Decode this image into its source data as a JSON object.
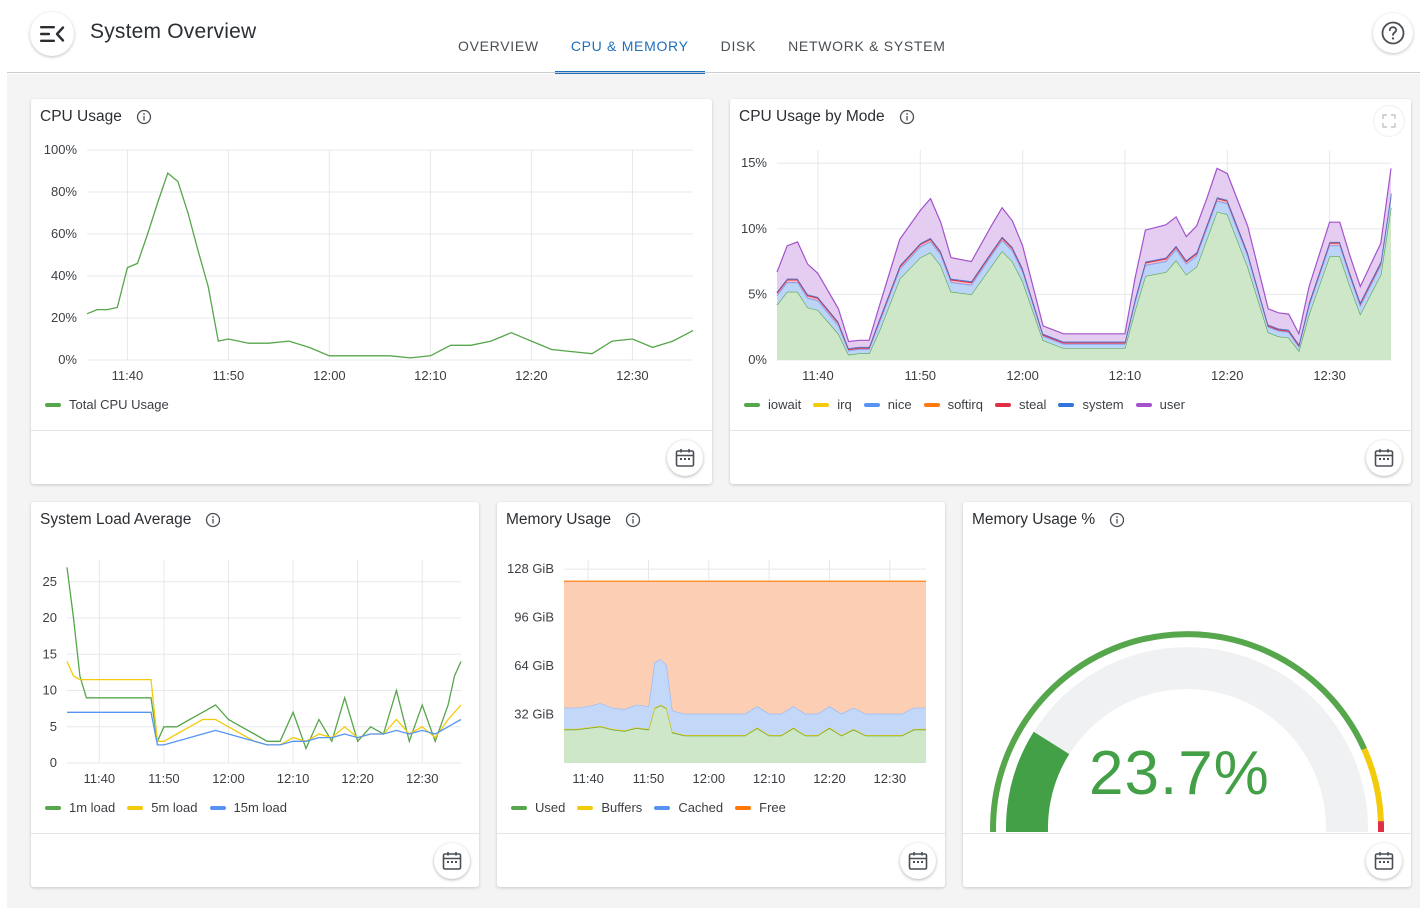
{
  "header": {
    "title": "System Overview",
    "tabs": [
      {
        "label": "OVERVIEW",
        "active": false
      },
      {
        "label": "CPU & MEMORY",
        "active": true
      },
      {
        "label": "DISK",
        "active": false
      },
      {
        "label": "NETWORK & SYSTEM",
        "active": false
      }
    ],
    "icons": {
      "menu": "menu-collapse-icon",
      "help": "help-circle-icon"
    },
    "accent_color": "#1f6fbf"
  },
  "panels": {
    "cpu_usage": {
      "title": "CPU Usage",
      "legend": [
        "Total CPU Usage"
      ]
    },
    "cpu_by_mode": {
      "title": "CPU Usage by Mode",
      "legend": [
        "iowait",
        "irq",
        "nice",
        "softirq",
        "steal",
        "system",
        "user"
      ]
    },
    "load_avg": {
      "title": "System Load Average",
      "legend": [
        "1m load",
        "5m load",
        "15m load"
      ]
    },
    "memory": {
      "title": "Memory Usage",
      "legend": [
        "Used",
        "Buffers",
        "Cached",
        "Free"
      ]
    },
    "memory_pct": {
      "title": "Memory Usage %",
      "value": "23.7%"
    }
  },
  "chart_data": [
    {
      "type": "line",
      "title": "CPU Usage",
      "x": [
        "11:36",
        "11:37",
        "11:38",
        "11:39",
        "11:40",
        "11:41",
        "11:42",
        "11:43",
        "11:44",
        "11:45",
        "11:46",
        "11:47",
        "11:48",
        "11:49",
        "11:50",
        "11:52",
        "11:54",
        "11:56",
        "11:58",
        "12:00",
        "12:02",
        "12:04",
        "12:06",
        "12:08",
        "12:10",
        "12:12",
        "12:14",
        "12:16",
        "12:18",
        "12:20",
        "12:22",
        "12:24",
        "12:26",
        "12:28",
        "12:30",
        "12:32",
        "12:34",
        "12:36"
      ],
      "xticks": [
        "11:40",
        "11:50",
        "12:00",
        "12:10",
        "12:20",
        "12:30"
      ],
      "yticks": [
        "0%",
        "20%",
        "40%",
        "60%",
        "80%",
        "100%"
      ],
      "ylim": [
        0,
        100
      ],
      "series": [
        {
          "name": "Total CPU Usage",
          "color": "#56a64b",
          "values": [
            22,
            24,
            24,
            25,
            44,
            46,
            60,
            75,
            89,
            85,
            70,
            52,
            35,
            9,
            10,
            8,
            8,
            9,
            6,
            2,
            2,
            2,
            2,
            1,
            2,
            7,
            7,
            9,
            13,
            9,
            5,
            4,
            3,
            9,
            10,
            6,
            9,
            14
          ]
        }
      ]
    },
    {
      "type": "area",
      "title": "CPU Usage by Mode",
      "xticks": [
        "11:40",
        "11:50",
        "12:00",
        "12:10",
        "12:20",
        "12:30"
      ],
      "yticks": [
        "0%",
        "5%",
        "10%",
        "15%"
      ],
      "ylim": [
        0,
        16
      ],
      "x": [
        "11:36",
        "11:37",
        "11:38",
        "11:39",
        "11:40",
        "11:42",
        "11:43",
        "11:44",
        "11:45",
        "11:46",
        "11:48",
        "11:50",
        "11:51",
        "11:52",
        "11:53",
        "11:55",
        "11:57",
        "11:58",
        "11:59",
        "12:00",
        "12:02",
        "12:04",
        "12:06",
        "12:08",
        "12:10",
        "12:11",
        "12:12",
        "12:14",
        "12:15",
        "12:16",
        "12:17",
        "12:18",
        "12:19",
        "12:20",
        "12:22",
        "12:24",
        "12:25",
        "12:26",
        "12:27",
        "12:28",
        "12:30",
        "12:31",
        "12:32",
        "12:33",
        "12:35",
        "12:36"
      ],
      "series": [
        {
          "name": "iowait",
          "color": "#56a64b",
          "values": [
            4.2,
            5.2,
            5.2,
            4.0,
            3.8,
            2.0,
            0.4,
            0.5,
            0.5,
            2.2,
            6.2,
            7.8,
            8.2,
            7.2,
            5.2,
            5.0,
            7.2,
            8.3,
            7.5,
            6.0,
            1.5,
            0.9,
            0.9,
            0.9,
            0.9,
            3.8,
            6.4,
            6.7,
            7.6,
            6.5,
            7.1,
            9.2,
            11.3,
            11.1,
            7.1,
            2.1,
            1.8,
            1.7,
            0.7,
            3.5,
            7.9,
            7.9,
            5.6,
            3.5,
            6.5,
            11.6
          ]
        },
        {
          "name": "irq",
          "color": "#f2cc0c",
          "values": [
            0,
            0,
            0,
            0,
            0,
            0,
            0,
            0,
            0,
            0,
            0,
            0,
            0,
            0,
            0,
            0,
            0,
            0,
            0,
            0,
            0,
            0,
            0,
            0,
            0,
            0,
            0,
            0,
            0,
            0,
            0,
            0,
            0,
            0,
            0,
            0,
            0,
            0,
            0,
            0,
            0,
            0,
            0,
            0,
            0,
            0
          ]
        },
        {
          "name": "nice",
          "color": "#8ab8ff",
          "values": [
            0.7,
            0.7,
            0.7,
            0.7,
            0.7,
            0.6,
            0.3,
            0.3,
            0.3,
            0.6,
            0.7,
            0.8,
            0.8,
            0.8,
            0.7,
            0.7,
            0.8,
            0.8,
            0.8,
            0.7,
            0.3,
            0.3,
            0.3,
            0.3,
            0.3,
            0.6,
            0.8,
            0.8,
            0.8,
            0.8,
            0.8,
            0.8,
            0.8,
            0.8,
            0.8,
            0.4,
            0.4,
            0.4,
            0.3,
            0.6,
            0.8,
            0.8,
            0.7,
            0.6,
            0.7,
            0.8
          ]
        },
        {
          "name": "softirq",
          "color": "#ff780a",
          "values": [
            0,
            0,
            0,
            0,
            0,
            0,
            0,
            0,
            0,
            0,
            0,
            0,
            0,
            0,
            0,
            0,
            0,
            0,
            0,
            0,
            0,
            0,
            0,
            0,
            0,
            0,
            0,
            0,
            0,
            0,
            0,
            0,
            0,
            0,
            0,
            0,
            0,
            0,
            0,
            0,
            0,
            0,
            0,
            0,
            0,
            0
          ]
        },
        {
          "name": "steal",
          "color": "#e02f44",
          "values": [
            0.2,
            0.2,
            0.2,
            0.2,
            0.2,
            0.2,
            0.1,
            0.1,
            0.1,
            0.2,
            0.2,
            0.2,
            0.2,
            0.2,
            0.2,
            0.2,
            0.2,
            0.2,
            0.2,
            0.2,
            0.1,
            0.1,
            0.1,
            0.1,
            0.1,
            0.2,
            0.2,
            0.2,
            0.2,
            0.2,
            0.2,
            0.2,
            0.2,
            0.2,
            0.2,
            0.1,
            0.1,
            0.1,
            0.1,
            0.2,
            0.2,
            0.2,
            0.2,
            0.2,
            0.2,
            0.2
          ]
        },
        {
          "name": "system",
          "color": "#3274d9",
          "values": [
            0.1,
            0.1,
            0.1,
            0.1,
            0.1,
            0.1,
            0.1,
            0.1,
            0.1,
            0.1,
            0.1,
            0.1,
            0.1,
            0.1,
            0.1,
            0.1,
            0.1,
            0.1,
            0.1,
            0.1,
            0.1,
            0.1,
            0.1,
            0.1,
            0.1,
            0.1,
            0.1,
            0.1,
            0.1,
            0.1,
            0.1,
            0.1,
            0.1,
            0.1,
            0.1,
            0.1,
            0.1,
            0.1,
            0.1,
            0.1,
            0.1,
            0.1,
            0.1,
            0.1,
            0.1,
            0.1
          ]
        },
        {
          "name": "user",
          "color": "#a352cc",
          "values": [
            1.5,
            2.5,
            2.8,
            2.3,
            1.8,
            1.0,
            0.5,
            0.5,
            0.5,
            1.0,
            2.0,
            2.5,
            3.0,
            2.2,
            1.6,
            1.5,
            2.0,
            2.2,
            2.0,
            1.7,
            0.6,
            0.6,
            0.6,
            0.6,
            0.6,
            1.6,
            2.4,
            2.5,
            2.2,
            1.8,
            2.0,
            2.0,
            2.2,
            2.0,
            2.0,
            1.2,
            1.2,
            1.2,
            0.8,
            1.2,
            1.5,
            1.5,
            1.3,
            1.2,
            1.4,
            1.9
          ]
        }
      ]
    },
    {
      "type": "line",
      "title": "System Load Average",
      "xticks": [
        "11:40",
        "11:50",
        "12:00",
        "12:10",
        "12:20",
        "12:30"
      ],
      "yticks": [
        "0",
        "5",
        "10",
        "15",
        "20",
        "25"
      ],
      "ylim": [
        0,
        28
      ],
      "x": [
        "11:35",
        "11:36",
        "11:37",
        "11:38",
        "11:39",
        "11:40",
        "11:41",
        "11:42",
        "11:43",
        "11:44",
        "11:45",
        "11:46",
        "11:47",
        "11:48",
        "11:49",
        "11:50",
        "11:52",
        "11:54",
        "11:56",
        "11:58",
        "12:00",
        "12:02",
        "12:04",
        "12:06",
        "12:08",
        "12:10",
        "12:12",
        "12:14",
        "12:16",
        "12:18",
        "12:20",
        "12:22",
        "12:24",
        "12:26",
        "12:28",
        "12:30",
        "12:32",
        "12:34",
        "12:35",
        "12:36"
      ],
      "series": [
        {
          "name": "1m load",
          "color": "#56a64b",
          "values": [
            27,
            20,
            12,
            9,
            9,
            9,
            9,
            9,
            9,
            9,
            9,
            9,
            9,
            9,
            3,
            5,
            5,
            6,
            7,
            8,
            6,
            5,
            4,
            3,
            3,
            7,
            2,
            6,
            3,
            9,
            3,
            5,
            4,
            10,
            3,
            8,
            3,
            8,
            12,
            14
          ]
        },
        {
          "name": "5m load",
          "color": "#f2cc0c",
          "values": [
            14,
            12,
            11.5,
            11.5,
            11.5,
            11.5,
            11.5,
            11.5,
            11.5,
            11.5,
            11.5,
            11.5,
            11.5,
            11.5,
            3,
            3,
            4,
            5,
            6,
            6,
            5,
            4,
            3,
            2.5,
            2.5,
            3.5,
            3,
            4,
            3.5,
            5,
            3.5,
            4,
            4,
            6,
            4,
            5,
            3.5,
            6,
            7,
            8
          ]
        },
        {
          "name": "15m load",
          "color": "#5794f2",
          "values": [
            7,
            7,
            7,
            7,
            7,
            7,
            7,
            7,
            7,
            7,
            7,
            7,
            7,
            7,
            2.5,
            2.5,
            3,
            3.5,
            4,
            4.5,
            4,
            3.5,
            3,
            2.5,
            2.5,
            3,
            3,
            3.5,
            3.5,
            4,
            3.5,
            4,
            4,
            4.5,
            4,
            4.5,
            4,
            5,
            5.5,
            6
          ]
        }
      ]
    },
    {
      "type": "area",
      "title": "Memory Usage",
      "xticks": [
        "11:40",
        "11:50",
        "12:00",
        "12:10",
        "12:20",
        "12:30"
      ],
      "yticks": [
        "32 GiB",
        "64 GiB",
        "96 GiB",
        "128 GiB"
      ],
      "ylim": [
        0,
        134
      ],
      "x": [
        "11:36",
        "11:38",
        "11:40",
        "11:42",
        "11:44",
        "11:46",
        "11:48",
        "11:50",
        "11:51",
        "11:52",
        "11:53",
        "11:54",
        "11:56",
        "11:58",
        "12:00",
        "12:02",
        "12:04",
        "12:06",
        "12:08",
        "12:10",
        "12:12",
        "12:14",
        "12:16",
        "12:18",
        "12:20",
        "12:22",
        "12:24",
        "12:26",
        "12:28",
        "12:30",
        "12:32",
        "12:34",
        "12:36"
      ],
      "series": [
        {
          "name": "Used",
          "color": "#56a64b",
          "values": [
            22,
            22,
            23,
            24,
            22,
            21,
            23,
            22,
            36,
            38,
            36,
            20,
            18,
            18,
            18,
            18,
            18,
            18,
            23,
            18,
            18,
            23,
            18,
            18,
            23,
            18,
            22,
            18,
            18,
            18,
            18,
            22,
            22
          ]
        },
        {
          "name": "Buffers",
          "color": "#f2cc0c",
          "values": [
            0.5,
            0.5,
            0.5,
            0.5,
            0.5,
            0.5,
            0.5,
            0.5,
            0.5,
            0.5,
            0.5,
            0.5,
            0.5,
            0.5,
            0.5,
            0.5,
            0.5,
            0.5,
            0.5,
            0.5,
            0.5,
            0.5,
            0.5,
            0.5,
            0.5,
            0.5,
            0.5,
            0.5,
            0.5,
            0.5,
            0.5,
            0.5,
            0.5
          ]
        },
        {
          "name": "Cached",
          "color": "#8ab8ff",
          "values": [
            14,
            14,
            14,
            15,
            14,
            14,
            15,
            15,
            30,
            30,
            28,
            14,
            14,
            14,
            14,
            14,
            14,
            14,
            14,
            14,
            14,
            14,
            14,
            14,
            14,
            14,
            14,
            14,
            14,
            14,
            14,
            14,
            14
          ]
        },
        {
          "name": "Free",
          "color": "#ff780a",
          "values": [
            83.5,
            83.5,
            82.5,
            80.5,
            83.5,
            84.5,
            81.5,
            82.5,
            53.5,
            51.5,
            55.5,
            85.5,
            87.5,
            87.5,
            87.5,
            87.5,
            87.5,
            87.5,
            82.5,
            87.5,
            87.5,
            82.5,
            87.5,
            87.5,
            82.5,
            87.5,
            83.5,
            87.5,
            87.5,
            87.5,
            87.5,
            83.5,
            83.5
          ]
        }
      ]
    },
    {
      "type": "gauge",
      "title": "Memory Usage %",
      "value": 23.7,
      "min": 0,
      "max": 100,
      "thresholds": [
        {
          "to": 80,
          "color": "#56a64b"
        },
        {
          "to": 90,
          "color": "#f2cc0c"
        },
        {
          "to": 100,
          "color": "#e02f44"
        }
      ]
    }
  ]
}
